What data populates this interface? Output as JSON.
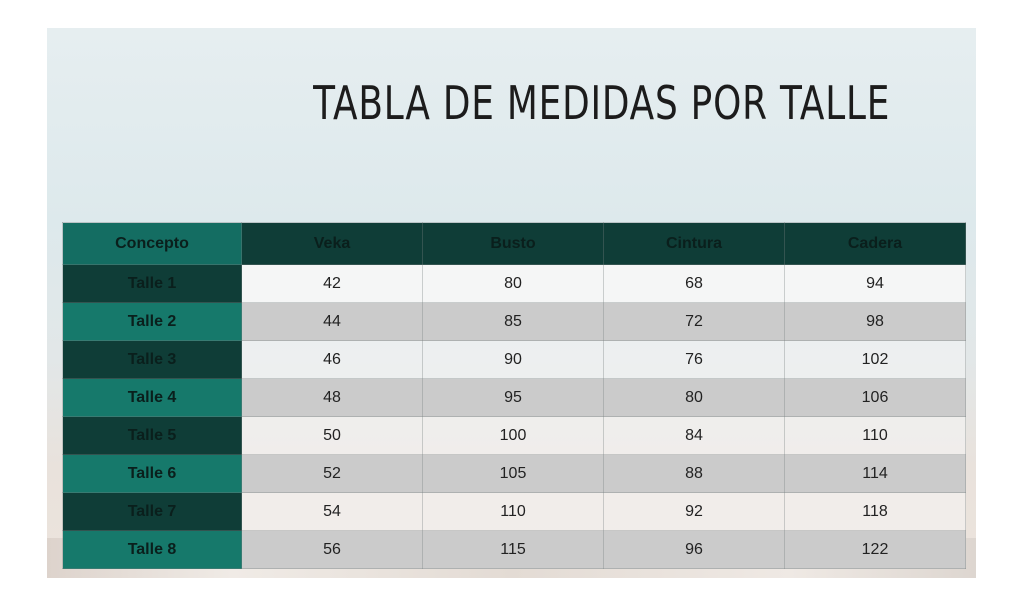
{
  "title": "TABLA DE MEDIDAS POR TALLE",
  "table": {
    "headers": [
      "Concepto",
      "Veka",
      "Busto",
      "Cintura",
      "Cadera"
    ],
    "rows": [
      {
        "label": "Talle 1",
        "values": [
          "42",
          "80",
          "68",
          "94"
        ]
      },
      {
        "label": "Talle 2",
        "values": [
          "44",
          "85",
          "72",
          "98"
        ]
      },
      {
        "label": "Talle 3",
        "values": [
          "46",
          "90",
          "76",
          "102"
        ]
      },
      {
        "label": "Talle 4",
        "values": [
          "48",
          "95",
          "80",
          "106"
        ]
      },
      {
        "label": "Talle 5",
        "values": [
          "50",
          "100",
          "84",
          "110"
        ]
      },
      {
        "label": "Talle 6",
        "values": [
          "52",
          "105",
          "88",
          "114"
        ]
      },
      {
        "label": "Talle 7",
        "values": [
          "54",
          "110",
          "92",
          "118"
        ]
      },
      {
        "label": "Talle 8",
        "values": [
          "56",
          "115",
          "96",
          "122"
        ]
      }
    ]
  },
  "colors": {
    "dark_teal": "#0f3d37",
    "teal": "#16796b",
    "row_grey": "#cbcbcb"
  }
}
